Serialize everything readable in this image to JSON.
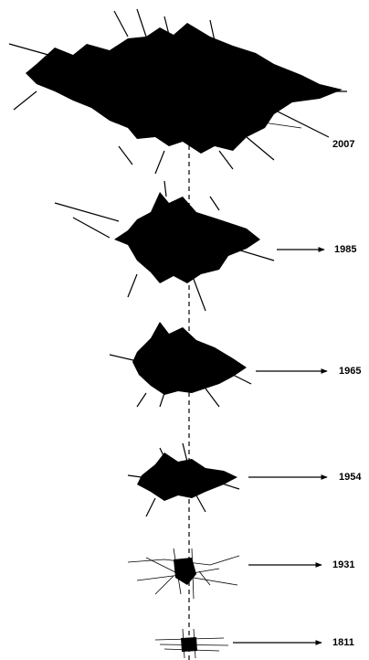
{
  "stages": [
    {
      "label": "2007"
    },
    {
      "label": "1985"
    },
    {
      "label": "1965"
    },
    {
      "label": "1954"
    },
    {
      "label": "1931"
    },
    {
      "label": "1811"
    }
  ]
}
